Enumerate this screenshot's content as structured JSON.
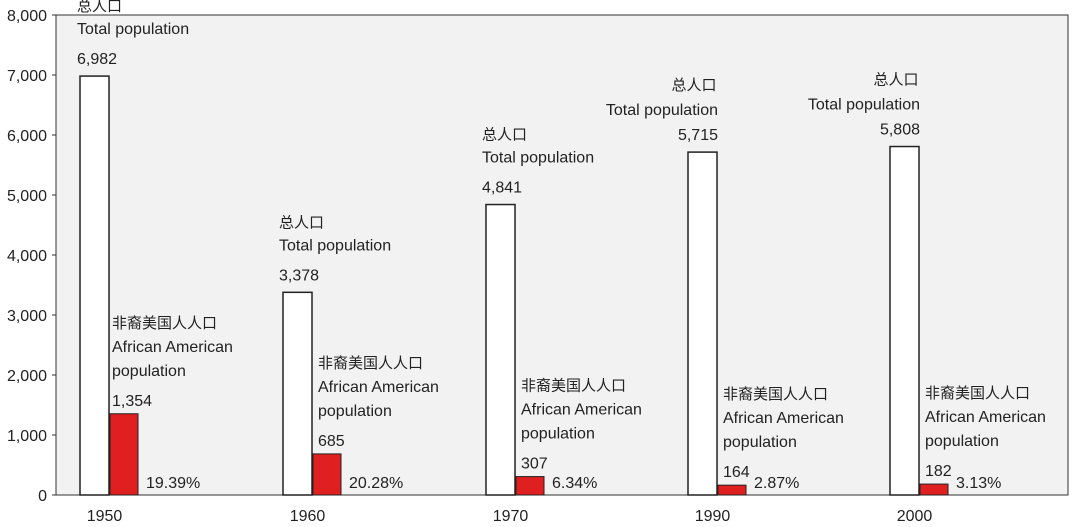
{
  "chart_data": {
    "type": "bar",
    "categories": [
      "1950",
      "1960",
      "1970",
      "1990",
      "2000"
    ],
    "series": [
      {
        "name": "Total population",
        "name_zh": "总人口",
        "values": [
          6982,
          3378,
          4841,
          5715,
          5808
        ],
        "value_labels": [
          "6,982",
          "3,378",
          "4,841",
          "5,715",
          "5,808"
        ],
        "color": "#ffffff",
        "stroke": "#222222"
      },
      {
        "name": "African American population",
        "name_zh": "非裔美国人人口",
        "name_line1": "African American",
        "name_line2": "population",
        "values": [
          1354,
          685,
          307,
          164,
          182
        ],
        "value_labels": [
          "1,354",
          "685",
          "307",
          "164",
          "182"
        ],
        "percent_labels": [
          "19.39%",
          "20.28%",
          "6.34%",
          "2.87%",
          "3.13%"
        ],
        "color": "#e02020",
        "stroke": "#222222"
      }
    ],
    "yticks": [
      0,
      1000,
      2000,
      3000,
      4000,
      5000,
      6000,
      7000,
      8000
    ],
    "ytick_labels": [
      "0",
      "1,000",
      "2,000",
      "3,000",
      "4,000",
      "5,000",
      "6,000",
      "7,000",
      "8,000"
    ],
    "ylim": [
      0,
      8000
    ],
    "title": "",
    "xlabel": "",
    "ylabel": "",
    "grid": false,
    "background": "#f2f2f2"
  }
}
